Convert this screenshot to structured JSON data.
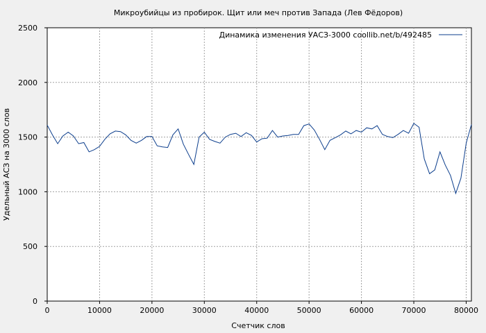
{
  "chart_data": {
    "type": "line",
    "title": "Микроубийцы из пробирок. Щит или меч против Запада (Лев Фёдоров)",
    "xlabel": "Счетчик слов",
    "ylabel": "Удельный АСЗ на 3000 слов",
    "xlim": [
      0,
      81000
    ],
    "ylim": [
      0,
      2500
    ],
    "x_ticks": [
      0,
      10000,
      20000,
      30000,
      40000,
      50000,
      60000,
      70000,
      80000
    ],
    "y_ticks": [
      0,
      500,
      1000,
      1500,
      2000,
      2500
    ],
    "x_tick_labels": [
      "0",
      "10000",
      "20000",
      "30000",
      "40000",
      "50000",
      "60000",
      "70000",
      "80000"
    ],
    "y_tick_labels": [
      "0",
      "500",
      "1000",
      "1500",
      "2000",
      "2500"
    ],
    "grid": true,
    "legend_position": "top-right",
    "series": [
      {
        "name": "Динамика изменения УАСЗ-3000  coollib.net/b/492485",
        "color": "#0b3d8c",
        "points": [
          [
            0,
            1610
          ],
          [
            1000,
            1520
          ],
          [
            2000,
            1440
          ],
          [
            3000,
            1510
          ],
          [
            4000,
            1545
          ],
          [
            5000,
            1510
          ],
          [
            6000,
            1440
          ],
          [
            7000,
            1450
          ],
          [
            8000,
            1365
          ],
          [
            9000,
            1385
          ],
          [
            10000,
            1415
          ],
          [
            11000,
            1480
          ],
          [
            12000,
            1530
          ],
          [
            13000,
            1555
          ],
          [
            14000,
            1550
          ],
          [
            15000,
            1520
          ],
          [
            16000,
            1470
          ],
          [
            17000,
            1445
          ],
          [
            18000,
            1470
          ],
          [
            19000,
            1505
          ],
          [
            20000,
            1505
          ],
          [
            21000,
            1420
          ],
          [
            22000,
            1410
          ],
          [
            23000,
            1405
          ],
          [
            24000,
            1520
          ],
          [
            25000,
            1575
          ],
          [
            26000,
            1435
          ],
          [
            27000,
            1340
          ],
          [
            28000,
            1250
          ],
          [
            29000,
            1500
          ],
          [
            30000,
            1545
          ],
          [
            31000,
            1480
          ],
          [
            32000,
            1460
          ],
          [
            33000,
            1445
          ],
          [
            34000,
            1500
          ],
          [
            35000,
            1525
          ],
          [
            36000,
            1535
          ],
          [
            37000,
            1505
          ],
          [
            38000,
            1540
          ],
          [
            39000,
            1515
          ],
          [
            40000,
            1455
          ],
          [
            41000,
            1485
          ],
          [
            42000,
            1490
          ],
          [
            43000,
            1560
          ],
          [
            44000,
            1500
          ],
          [
            45000,
            1510
          ],
          [
            46000,
            1515
          ],
          [
            47000,
            1525
          ],
          [
            48000,
            1525
          ],
          [
            49000,
            1605
          ],
          [
            50000,
            1620
          ],
          [
            51000,
            1565
          ],
          [
            52000,
            1480
          ],
          [
            53000,
            1385
          ],
          [
            54000,
            1470
          ],
          [
            55000,
            1495
          ],
          [
            56000,
            1520
          ],
          [
            57000,
            1555
          ],
          [
            58000,
            1530
          ],
          [
            59000,
            1560
          ],
          [
            60000,
            1545
          ],
          [
            61000,
            1585
          ],
          [
            62000,
            1575
          ],
          [
            63000,
            1605
          ],
          [
            64000,
            1525
          ],
          [
            65000,
            1505
          ],
          [
            66000,
            1495
          ],
          [
            67000,
            1525
          ],
          [
            68000,
            1560
          ],
          [
            69000,
            1535
          ],
          [
            70000,
            1625
          ],
          [
            71000,
            1590
          ],
          [
            72000,
            1300
          ],
          [
            73000,
            1165
          ],
          [
            74000,
            1200
          ],
          [
            75000,
            1365
          ],
          [
            76000,
            1245
          ],
          [
            77000,
            1150
          ],
          [
            78000,
            985
          ],
          [
            79000,
            1125
          ],
          [
            80000,
            1445
          ],
          [
            81000,
            1615
          ]
        ]
      }
    ]
  }
}
